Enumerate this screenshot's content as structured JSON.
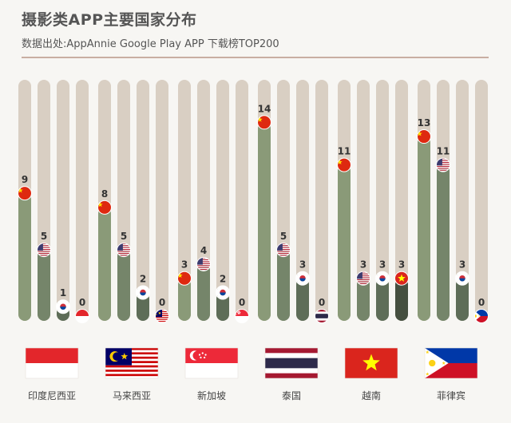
{
  "title": "摄影类APP主要国家分布",
  "subtitle": "数据出处:AppAnnie Google Play APP 下载榜TOP200",
  "colors": {
    "bar_bg": "#d9cfc3",
    "bar_fill": [
      "#8a9a78",
      "#75856a",
      "#5e6d58",
      "#454f3f"
    ]
  },
  "chart_data": {
    "type": "bar",
    "title": "摄影类APP主要国家分布",
    "ylim": [
      0,
      17
    ],
    "groups": [
      {
        "country": "印度尼西亚",
        "flag": "indonesia-flag",
        "bars": [
          {
            "flag": "china-flag",
            "value": 9
          },
          {
            "flag": "usa-flag",
            "value": 5
          },
          {
            "flag": "korea-flag",
            "value": 1
          },
          {
            "flag": "indonesia-flag",
            "value": 0
          }
        ]
      },
      {
        "country": "马来西亚",
        "flag": "malaysia-flag",
        "bars": [
          {
            "flag": "china-flag",
            "value": 8
          },
          {
            "flag": "usa-flag",
            "value": 5
          },
          {
            "flag": "korea-flag",
            "value": 2
          },
          {
            "flag": "malaysia-flag",
            "value": 0
          }
        ]
      },
      {
        "country": "新加坡",
        "flag": "singapore-flag",
        "bars": [
          {
            "flag": "china-flag",
            "value": 3
          },
          {
            "flag": "usa-flag",
            "value": 4
          },
          {
            "flag": "korea-flag",
            "value": 2
          },
          {
            "flag": "singapore-flag",
            "value": 0
          }
        ]
      },
      {
        "country": "泰国",
        "flag": "thailand-flag",
        "bars": [
          {
            "flag": "china-flag",
            "value": 14
          },
          {
            "flag": "usa-flag",
            "value": 5
          },
          {
            "flag": "korea-flag",
            "value": 3
          },
          {
            "flag": "thailand-flag",
            "value": 0
          }
        ]
      },
      {
        "country": "越南",
        "flag": "vietnam-flag",
        "bars": [
          {
            "flag": "china-flag",
            "value": 11
          },
          {
            "flag": "usa-flag",
            "value": 3
          },
          {
            "flag": "korea-flag",
            "value": 3
          },
          {
            "flag": "vietnam-flag",
            "value": 3
          }
        ]
      },
      {
        "country": "菲律宾",
        "flag": "philippines-flag",
        "bars": [
          {
            "flag": "china-flag",
            "value": 13
          },
          {
            "flag": "usa-flag",
            "value": 11
          },
          {
            "flag": "korea-flag",
            "value": 3
          },
          {
            "flag": "philippines-flag",
            "value": 0
          }
        ]
      }
    ]
  }
}
